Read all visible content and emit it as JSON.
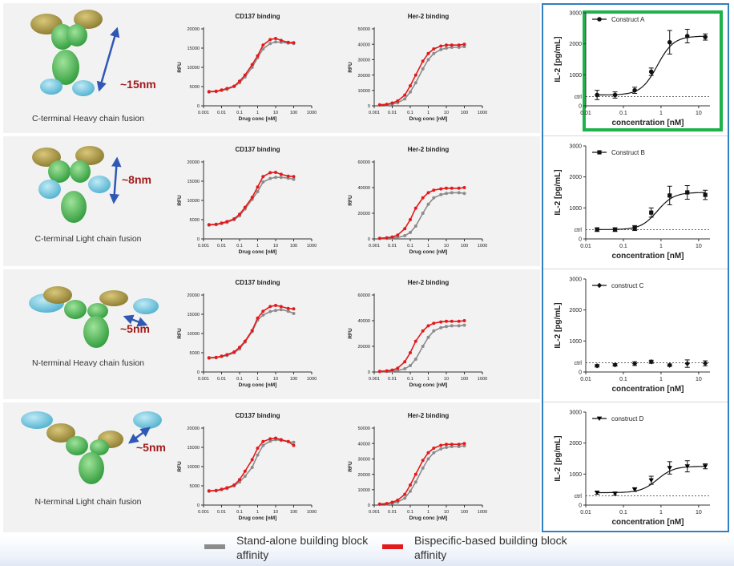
{
  "rows": [
    {
      "label": "C-terminal Heavy chain fusion",
      "distance": "~15nm"
    },
    {
      "label": "C-terminal Light chain fusion",
      "distance": "~8nm"
    },
    {
      "label": "N-terminal Heavy chain fusion",
      "distance": "~5nm"
    },
    {
      "label": "N-terminal Light chain fusion",
      "distance": "~5nm"
    }
  ],
  "legend": {
    "standalone": "Stand-alone building block affinity",
    "bispecific": "Bispecific-based building block affinity"
  },
  "colors": {
    "standalone": "#8c8c8c",
    "bispecific": "#e31a1c",
    "frame": "#2f7fc1",
    "highlight": "#1fb24a",
    "distance_arrow": "#2f58b5"
  },
  "chart_data": [
    {
      "type": "line",
      "panel": "row1-cd137",
      "title": "CD137 binding",
      "xlabel": "Drug conc [nM]",
      "ylabel": "RFU",
      "xscale": "log",
      "xlim": [
        0.001,
        1000
      ],
      "ylim": [
        0,
        20000
      ],
      "yticks": [
        "0",
        "5000",
        "10000",
        "15000",
        "20000"
      ],
      "xticks": [
        "0.001",
        "0.01",
        "0.1",
        "1",
        "10",
        "100",
        "1000"
      ],
      "x": [
        0.002,
        0.005,
        0.01,
        0.02,
        0.05,
        0.1,
        0.2,
        0.5,
        1,
        2,
        5,
        10,
        20,
        50,
        100
      ],
      "series": [
        {
          "role": "standalone",
          "values": [
            3600,
            3700,
            4000,
            4300,
            5000,
            6000,
            7500,
            10000,
            12500,
            14800,
            16200,
            16600,
            16500,
            16300,
            16200
          ]
        },
        {
          "role": "bispecific",
          "values": [
            3700,
            3800,
            4100,
            4500,
            5100,
            6400,
            8000,
            10700,
            13000,
            15800,
            17200,
            17500,
            17000,
            16500,
            16400
          ]
        }
      ]
    },
    {
      "type": "line",
      "panel": "row1-her2",
      "title": "Her-2 binding",
      "xlabel": "Drug conc [nM]",
      "ylabel": "RFU",
      "xscale": "log",
      "xlim": [
        0.001,
        1000
      ],
      "ylim": [
        0,
        50000
      ],
      "yticks": [
        "0",
        "10000",
        "20000",
        "30000",
        "40000",
        "50000"
      ],
      "xticks": [
        "0.001",
        "0.01",
        "0.1",
        "1",
        "10",
        "100",
        "1000"
      ],
      "x": [
        0.002,
        0.005,
        0.01,
        0.02,
        0.05,
        0.1,
        0.2,
        0.5,
        1,
        2,
        5,
        10,
        20,
        50,
        100
      ],
      "series": [
        {
          "role": "standalone",
          "values": [
            500,
            800,
            1200,
            2000,
            4500,
            9000,
            15000,
            24000,
            30000,
            34000,
            36500,
            37500,
            38000,
            38000,
            38500
          ]
        },
        {
          "role": "bispecific",
          "values": [
            600,
            1000,
            1800,
            3200,
            7000,
            13000,
            20000,
            29000,
            34000,
            37000,
            38800,
            39500,
            39500,
            39500,
            40000
          ]
        }
      ]
    },
    {
      "type": "scatter",
      "panel": "row1-il2",
      "series_name": "Construct A",
      "marker": "circle",
      "ylabel": "IL-2 [pg/mL]",
      "xlabel": "concentration [nM]",
      "xscale": "log",
      "xlim": [
        0.01,
        20
      ],
      "ylim": [
        0,
        3000
      ],
      "yticks": [
        "0",
        "1000",
        "2000",
        "3000"
      ],
      "xticks": [
        "0.01",
        "0.1",
        "1",
        "10"
      ],
      "ctrl_label": "ctrl",
      "ctrl": 300,
      "x": [
        0.02,
        0.06,
        0.2,
        0.55,
        1.7,
        5,
        15
      ],
      "values": [
        350,
        350,
        500,
        1100,
        2050,
        2250,
        2220
      ],
      "errors": [
        150,
        100,
        100,
        120,
        380,
        220,
        100
      ]
    },
    {
      "type": "line",
      "panel": "row2-cd137",
      "title": "CD137 binding",
      "xlabel": "Drug conc [nM]",
      "ylabel": "RFU",
      "xscale": "log",
      "xlim": [
        0.001,
        1000
      ],
      "ylim": [
        0,
        20000
      ],
      "yticks": [
        "0",
        "5000",
        "10000",
        "15000",
        "20000"
      ],
      "xticks": [
        "0.001",
        "0.01",
        "0.1",
        "1",
        "10",
        "100",
        "1000"
      ],
      "x": [
        0.002,
        0.005,
        0.01,
        0.02,
        0.05,
        0.1,
        0.2,
        0.5,
        1,
        2,
        5,
        10,
        20,
        50,
        100
      ],
      "series": [
        {
          "role": "standalone",
          "values": [
            3600,
            3700,
            4000,
            4300,
            5000,
            6000,
            7800,
            10300,
            12300,
            14800,
            15700,
            16000,
            16000,
            15800,
            15500
          ]
        },
        {
          "role": "bispecific",
          "values": [
            3700,
            3800,
            4100,
            4500,
            5200,
            6400,
            8200,
            10800,
            13500,
            16200,
            17200,
            17300,
            16800,
            16300,
            16200
          ]
        }
      ]
    },
    {
      "type": "line",
      "panel": "row2-her2",
      "title": "Her-2 binding",
      "xlabel": "Drug conc [nM]",
      "ylabel": "RFU",
      "xscale": "log",
      "xlim": [
        0.001,
        1000
      ],
      "ylim": [
        0,
        60000
      ],
      "yticks": [
        "0",
        "20000",
        "40000",
        "60000"
      ],
      "xticks": [
        "0.001",
        "0.01",
        "0.1",
        "1",
        "10",
        "100",
        "1000"
      ],
      "x": [
        0.002,
        0.005,
        0.01,
        0.02,
        0.05,
        0.1,
        0.2,
        0.5,
        1,
        2,
        5,
        10,
        20,
        50,
        100
      ],
      "series": [
        {
          "role": "standalone",
          "values": [
            300,
            500,
            800,
            1200,
            2500,
            5000,
            10000,
            20000,
            27000,
            32000,
            34500,
            35500,
            36000,
            36000,
            35500
          ]
        },
        {
          "role": "bispecific",
          "values": [
            500,
            900,
            1500,
            3000,
            8000,
            15000,
            24000,
            32000,
            36000,
            38000,
            39000,
            39500,
            39500,
            39500,
            40000
          ]
        }
      ]
    },
    {
      "type": "scatter",
      "panel": "row2-il2",
      "series_name": "Construct B",
      "marker": "square",
      "ylabel": "IL-2 [pg/mL]",
      "xlabel": "concentration [nM]",
      "xscale": "log",
      "xlim": [
        0.01,
        20
      ],
      "ylim": [
        0,
        3000
      ],
      "yticks": [
        "0",
        "1000",
        "2000",
        "3000"
      ],
      "xticks": [
        "0.01",
        "0.1",
        "1",
        "10"
      ],
      "ctrl_label": "ctrl",
      "ctrl": 300,
      "x": [
        0.02,
        0.06,
        0.2,
        0.55,
        1.7,
        5,
        15
      ],
      "values": [
        300,
        300,
        350,
        850,
        1400,
        1500,
        1420
      ],
      "errors": [
        60,
        60,
        80,
        150,
        300,
        220,
        150
      ]
    },
    {
      "type": "line",
      "panel": "row3-cd137",
      "title": "CD137 binding",
      "xlabel": "Drug conc [nM]",
      "ylabel": "RFU",
      "xscale": "log",
      "xlim": [
        0.001,
        1000
      ],
      "ylim": [
        0,
        20000
      ],
      "yticks": [
        "0",
        "5000",
        "10000",
        "15000",
        "20000"
      ],
      "xticks": [
        "0.001",
        "0.01",
        "0.1",
        "1",
        "10",
        "100",
        "1000"
      ],
      "x": [
        0.002,
        0.005,
        0.01,
        0.02,
        0.05,
        0.1,
        0.2,
        0.5,
        1,
        2,
        5,
        10,
        20,
        50,
        100
      ],
      "series": [
        {
          "role": "standalone",
          "values": [
            3600,
            3700,
            4000,
            4300,
            5000,
            6000,
            7800,
            10500,
            13500,
            14800,
            15700,
            16000,
            16200,
            15800,
            15200
          ]
        },
        {
          "role": "bispecific",
          "values": [
            3700,
            3800,
            4100,
            4500,
            5200,
            6400,
            8000,
            10800,
            14000,
            15800,
            17000,
            17300,
            17000,
            16500,
            16400
          ]
        }
      ]
    },
    {
      "type": "line",
      "panel": "row3-her2",
      "title": "Her-2 binding",
      "xlabel": "Drug conc [nM]",
      "ylabel": "RFU",
      "xscale": "log",
      "xlim": [
        0.001,
        1000
      ],
      "ylim": [
        0,
        60000
      ],
      "yticks": [
        "0",
        "20000",
        "40000",
        "60000"
      ],
      "xticks": [
        "0.001",
        "0.01",
        "0.1",
        "1",
        "10",
        "100",
        "1000"
      ],
      "x": [
        0.002,
        0.005,
        0.01,
        0.02,
        0.05,
        0.1,
        0.2,
        0.5,
        1,
        2,
        5,
        10,
        20,
        50,
        100
      ],
      "series": [
        {
          "role": "standalone",
          "values": [
            300,
            500,
            800,
            1200,
            2500,
            5000,
            10000,
            20000,
            27000,
            32000,
            34500,
            35500,
            36000,
            36000,
            36500
          ]
        },
        {
          "role": "bispecific",
          "values": [
            500,
            900,
            1500,
            3000,
            8000,
            15000,
            24000,
            32000,
            36000,
            38000,
            39000,
            39500,
            39500,
            39500,
            40000
          ]
        }
      ]
    },
    {
      "type": "scatter",
      "panel": "row3-il2",
      "series_name": "construct C",
      "marker": "diamond",
      "ylabel": "IL-2 [pg/mL]",
      "xlabel": "concentration [nM]",
      "xscale": "log",
      "xlim": [
        0.01,
        20
      ],
      "ylim": [
        0,
        3000
      ],
      "yticks": [
        "0",
        "1000",
        "2000",
        "3000"
      ],
      "xticks": [
        "0.01",
        "0.1",
        "1",
        "10"
      ],
      "ctrl_label": "ctrl",
      "ctrl": 300,
      "x": [
        0.02,
        0.06,
        0.2,
        0.55,
        1.7,
        5,
        15
      ],
      "values": [
        200,
        230,
        270,
        330,
        220,
        270,
        280
      ],
      "errors": [
        40,
        40,
        60,
        50,
        40,
        120,
        80
      ]
    },
    {
      "type": "line",
      "panel": "row4-cd137",
      "title": "CD137 binding",
      "xlabel": "Drug conc [nM]",
      "ylabel": "RFU",
      "xscale": "log",
      "xlim": [
        0.001,
        1000
      ],
      "ylim": [
        0,
        20000
      ],
      "yticks": [
        "0",
        "5000",
        "10000",
        "15000",
        "20000"
      ],
      "xticks": [
        "0.001",
        "0.01",
        "0.1",
        "1",
        "10",
        "100",
        "1000"
      ],
      "x": [
        0.002,
        0.005,
        0.01,
        0.02,
        0.05,
        0.1,
        0.2,
        0.5,
        1,
        2,
        5,
        10,
        20,
        50,
        100
      ],
      "series": [
        {
          "role": "standalone",
          "values": [
            3600,
            3700,
            4000,
            4300,
            5000,
            6000,
            7500,
            9800,
            13000,
            15500,
            16600,
            17000,
            16800,
            16500,
            16300
          ]
        },
        {
          "role": "bispecific",
          "values": [
            3700,
            3800,
            4100,
            4500,
            5200,
            6600,
            8800,
            11800,
            14800,
            16500,
            17200,
            17400,
            17000,
            16500,
            15500
          ]
        }
      ]
    },
    {
      "type": "line",
      "panel": "row4-her2",
      "title": "Her-2 binding",
      "xlabel": "Drug conc [nM]",
      "ylabel": "RFU",
      "xscale": "log",
      "xlim": [
        0.001,
        1000
      ],
      "ylim": [
        0,
        50000
      ],
      "yticks": [
        "0",
        "10000",
        "20000",
        "30000",
        "40000",
        "50000"
      ],
      "xticks": [
        "0.001",
        "0.01",
        "0.1",
        "1",
        "10",
        "100",
        "1000"
      ],
      "x": [
        0.002,
        0.005,
        0.01,
        0.02,
        0.05,
        0.1,
        0.2,
        0.5,
        1,
        2,
        5,
        10,
        20,
        50,
        100
      ],
      "series": [
        {
          "role": "standalone",
          "values": [
            500,
            800,
            1200,
            2000,
            4500,
            9000,
            15000,
            24000,
            30000,
            34000,
            36500,
            37500,
            38000,
            38000,
            38500
          ]
        },
        {
          "role": "bispecific",
          "values": [
            600,
            1000,
            1800,
            3200,
            7000,
            13000,
            20000,
            29000,
            34000,
            37000,
            38800,
            39500,
            39500,
            39500,
            40000
          ]
        }
      ]
    },
    {
      "type": "scatter",
      "panel": "row4-il2",
      "series_name": "construct D",
      "marker": "triangle-down",
      "ylabel": "IL-2 [pg/mL]",
      "xlabel": "concentration [nM]",
      "xscale": "log",
      "xlim": [
        0.01,
        20
      ],
      "ylim": [
        0,
        3000
      ],
      "yticks": [
        "0",
        "1000",
        "2000",
        "3000"
      ],
      "xticks": [
        "0.01",
        "0.1",
        "1",
        "10"
      ],
      "ctrl_label": "ctrl",
      "ctrl": 300,
      "x": [
        0.02,
        0.06,
        0.2,
        0.55,
        1.7,
        5,
        15
      ],
      "values": [
        400,
        370,
        500,
        800,
        1200,
        1250,
        1250
      ],
      "errors": [
        50,
        50,
        60,
        130,
        200,
        180,
        80
      ]
    }
  ]
}
